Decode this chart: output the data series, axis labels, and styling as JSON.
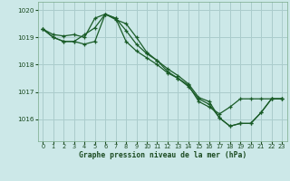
{
  "xlabel": "Graphe pression niveau de la mer (hPa)",
  "background_color": "#cce8e8",
  "grid_color": "#aacccc",
  "line_color": "#1a5c28",
  "marker": "+",
  "ylim": [
    1015.2,
    1020.3
  ],
  "xlim": [
    -0.5,
    23.5
  ],
  "yticks": [
    1016,
    1017,
    1018,
    1019,
    1020
  ],
  "xticks": [
    0,
    1,
    2,
    3,
    4,
    5,
    6,
    7,
    8,
    9,
    10,
    11,
    12,
    13,
    14,
    15,
    16,
    17,
    18,
    19,
    20,
    21,
    22,
    23
  ],
  "series": [
    [
      1019.3,
      1019.1,
      1019.05,
      1019.1,
      1019.0,
      1019.7,
      1019.85,
      1019.65,
      1019.5,
      1019.0,
      1018.45,
      1018.15,
      1017.75,
      1017.5,
      1017.25,
      1016.65,
      1016.45,
      1016.2,
      1016.45,
      1016.75,
      1016.75,
      1016.75,
      1016.75,
      1016.75
    ],
    [
      1019.3,
      1019.0,
      1018.85,
      1018.85,
      1019.1,
      1019.35,
      1019.85,
      1019.7,
      1019.25,
      1018.75,
      1018.4,
      1018.15,
      1017.85,
      1017.6,
      1017.3,
      1016.8,
      1016.65,
      1016.05,
      1015.75,
      1015.85,
      1015.85,
      1016.25,
      1016.75,
      1016.75
    ],
    [
      1019.3,
      1019.0,
      1018.85,
      1018.85,
      1018.75,
      1018.85,
      1019.85,
      1019.7,
      1018.85,
      1018.5,
      1018.25,
      1018.0,
      1017.7,
      1017.5,
      1017.2,
      1016.75,
      1016.55,
      1016.05,
      1015.75,
      1015.85,
      1015.85,
      1016.25,
      1016.75,
      1016.75
    ]
  ]
}
